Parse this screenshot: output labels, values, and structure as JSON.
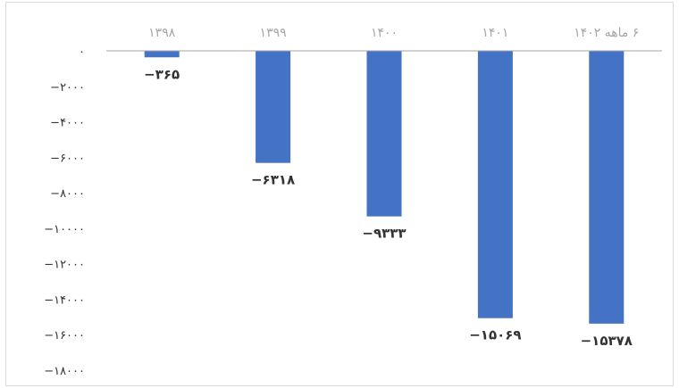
{
  "chart_data": {
    "type": "bar",
    "categories": [
      "۱۳۹۸",
      "۱۳۹۹",
      "۱۴۰۰",
      "۱۴۰۱",
      "۶ ماهه ۱۴۰۲"
    ],
    "values": [
      -365,
      -6318,
      -9333,
      -15069,
      -15378
    ],
    "data_labels": [
      "−۳۶۵",
      "−۶۳۱۸",
      "−۹۳۳۳",
      "−۱۵۰۶۹",
      "−۱۵۳۷۸"
    ],
    "y_ticks": [
      0,
      -2000,
      -4000,
      -6000,
      -8000,
      -10000,
      -12000,
      -14000,
      -16000,
      -18000
    ],
    "y_tick_labels": [
      "۰",
      "−۲۰۰۰",
      "−۴۰۰۰",
      "−۶۰۰۰",
      "−۸۰۰۰",
      "−۱۰۰۰۰",
      "−۱۲۰۰۰",
      "−۱۴۰۰۰",
      "−۱۶۰۰۰",
      "−۱۸۰۰۰"
    ],
    "ylim": [
      -18000,
      0
    ],
    "x_axis_position": "top",
    "grid": false,
    "legend": "none",
    "bar_color": "#4472c4",
    "axis_color": "#a6a6a6"
  }
}
